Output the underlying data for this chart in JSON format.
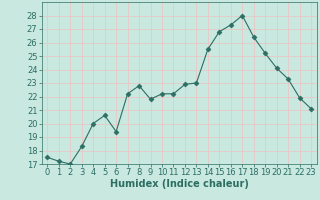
{
  "x": [
    0,
    1,
    2,
    3,
    4,
    5,
    6,
    7,
    8,
    9,
    10,
    11,
    12,
    13,
    14,
    15,
    16,
    17,
    18,
    19,
    20,
    21,
    22,
    23
  ],
  "y": [
    17.5,
    17.2,
    17.0,
    18.3,
    20.0,
    20.6,
    19.4,
    22.2,
    22.8,
    21.8,
    22.2,
    22.2,
    22.9,
    23.0,
    25.5,
    26.8,
    27.3,
    28.0,
    26.4,
    25.2,
    24.1,
    23.3,
    21.9,
    21.1
  ],
  "line_color": "#2d6e63",
  "marker": "D",
  "marker_size": 2.5,
  "bg_color": "#c8e8e0",
  "grid_color": "#e8c8c8",
  "xlabel": "Humidex (Indice chaleur)",
  "ylabel": "",
  "ylim": [
    17,
    29
  ],
  "xlim": [
    -0.5,
    23.5
  ],
  "yticks": [
    17,
    18,
    19,
    20,
    21,
    22,
    23,
    24,
    25,
    26,
    27,
    28
  ],
  "xticks": [
    0,
    1,
    2,
    3,
    4,
    5,
    6,
    7,
    8,
    9,
    10,
    11,
    12,
    13,
    14,
    15,
    16,
    17,
    18,
    19,
    20,
    21,
    22,
    23
  ],
  "tick_color": "#2d6e63",
  "label_color": "#2d6e63",
  "xlabel_fontsize": 7,
  "tick_fontsize": 6
}
